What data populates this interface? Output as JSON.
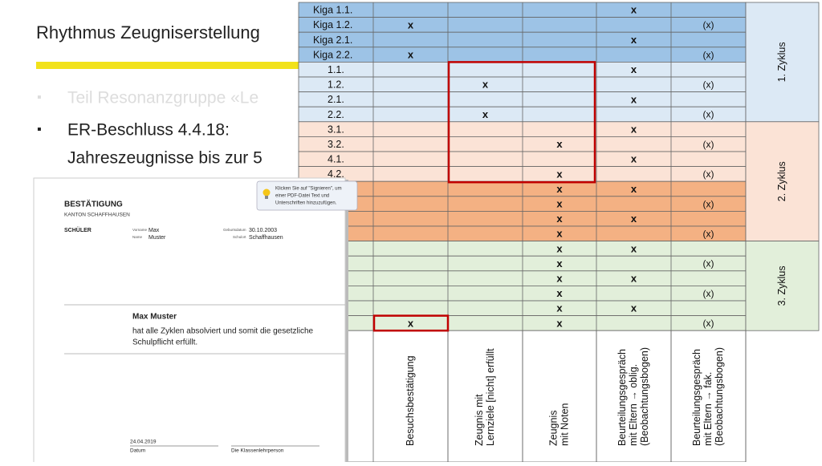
{
  "title": "Rhythmus Zeugniserstellung",
  "bullets": [
    "Teil Resonanzgruppe «Le",
    "ER-Beschluss 4.4.18:",
    "Jahreszeugnisse bis zur 5"
  ],
  "table": {
    "rows": [
      {
        "label": "Kiga 1.1.",
        "cells": [
          null,
          null,
          null,
          "x",
          null
        ]
      },
      {
        "label": "Kiga 1.2.",
        "cells": [
          "x",
          null,
          null,
          null,
          "(x)"
        ]
      },
      {
        "label": "Kiga 2.1.",
        "cells": [
          null,
          null,
          null,
          "x",
          null
        ]
      },
      {
        "label": "Kiga 2.2.",
        "cells": [
          "x",
          null,
          null,
          null,
          "(x)"
        ]
      },
      {
        "label": "1.1.",
        "cells": [
          null,
          null,
          null,
          "x",
          null
        ]
      },
      {
        "label": "1.2.",
        "cells": [
          null,
          "x",
          null,
          null,
          "(x)"
        ]
      },
      {
        "label": "2.1.",
        "cells": [
          null,
          null,
          null,
          "x",
          null
        ]
      },
      {
        "label": "2.2.",
        "cells": [
          null,
          "x",
          null,
          null,
          "(x)"
        ]
      },
      {
        "label": "3.1.",
        "cells": [
          null,
          null,
          null,
          "x",
          null
        ]
      },
      {
        "label": "3.2.",
        "cells": [
          null,
          null,
          "x",
          null,
          "(x)"
        ]
      },
      {
        "label": "4.1.",
        "cells": [
          null,
          null,
          null,
          "x",
          null
        ]
      },
      {
        "label": "4.2.",
        "cells": [
          null,
          null,
          "x",
          null,
          "(x)"
        ]
      },
      {
        "cells": [
          null,
          null,
          "x",
          "x",
          null
        ]
      },
      {
        "cells": [
          null,
          null,
          "x",
          null,
          "(x)"
        ]
      },
      {
        "cells": [
          null,
          null,
          "x",
          "x",
          null
        ]
      },
      {
        "cells": [
          null,
          null,
          "x",
          null,
          "(x)"
        ]
      },
      {
        "cells": [
          null,
          null,
          "x",
          "x",
          null
        ]
      },
      {
        "cells": [
          null,
          null,
          "x",
          null,
          "(x)"
        ]
      },
      {
        "cells": [
          null,
          null,
          "x",
          "x",
          null
        ]
      },
      {
        "cells": [
          null,
          null,
          "x",
          null,
          "(x)"
        ]
      },
      {
        "cells": [
          null,
          null,
          "x",
          "x",
          null
        ]
      },
      {
        "cells": [
          "x",
          null,
          "x",
          null,
          "(x)"
        ]
      }
    ],
    "zyklen": [
      "1. Zyklus",
      "2. Zyklus",
      "3. Zyklus"
    ],
    "columns": [
      [
        "Besuchsbestätigung"
      ],
      [
        "Zeugnis mit",
        "Lernziele [nicht] erfüllt"
      ],
      [
        "Zeugnis",
        "mit Noten"
      ],
      [
        "Beurteilungsgespräch",
        "mit Eltern → oblig.",
        "(Beobachtungsbogen)"
      ],
      [
        "Beurteilungsgespräch",
        "mit Eltern → fak.",
        "(Beobachtungsbogen)"
      ]
    ]
  },
  "document": {
    "heading": "BESTÄTIGUNG",
    "canton": "KANTON SCHAFFHAUSEN",
    "section": "SCHÜLER",
    "fields": [
      {
        "label": "Vorname",
        "value": "Max"
      },
      {
        "label": "Name",
        "value": "Muster"
      },
      {
        "label": "Geburtsdatum",
        "value": "30.10.2003"
      },
      {
        "label": "Schulort",
        "value": "Schaffhausen"
      }
    ],
    "name": "Max Muster",
    "text": [
      "hat alle Zyklen absolviert und somit die gesetzliche",
      "Schulpflicht erfüllt."
    ],
    "date": "24.04.2019",
    "date_label": "Datum",
    "signer_label": "Die Klassenlehrperson",
    "tooltip": [
      "Klicken Sie auf \"Signieren\", um",
      "einer PDF-Datei Text und",
      "Unterschriften hinzuzufügen."
    ]
  }
}
